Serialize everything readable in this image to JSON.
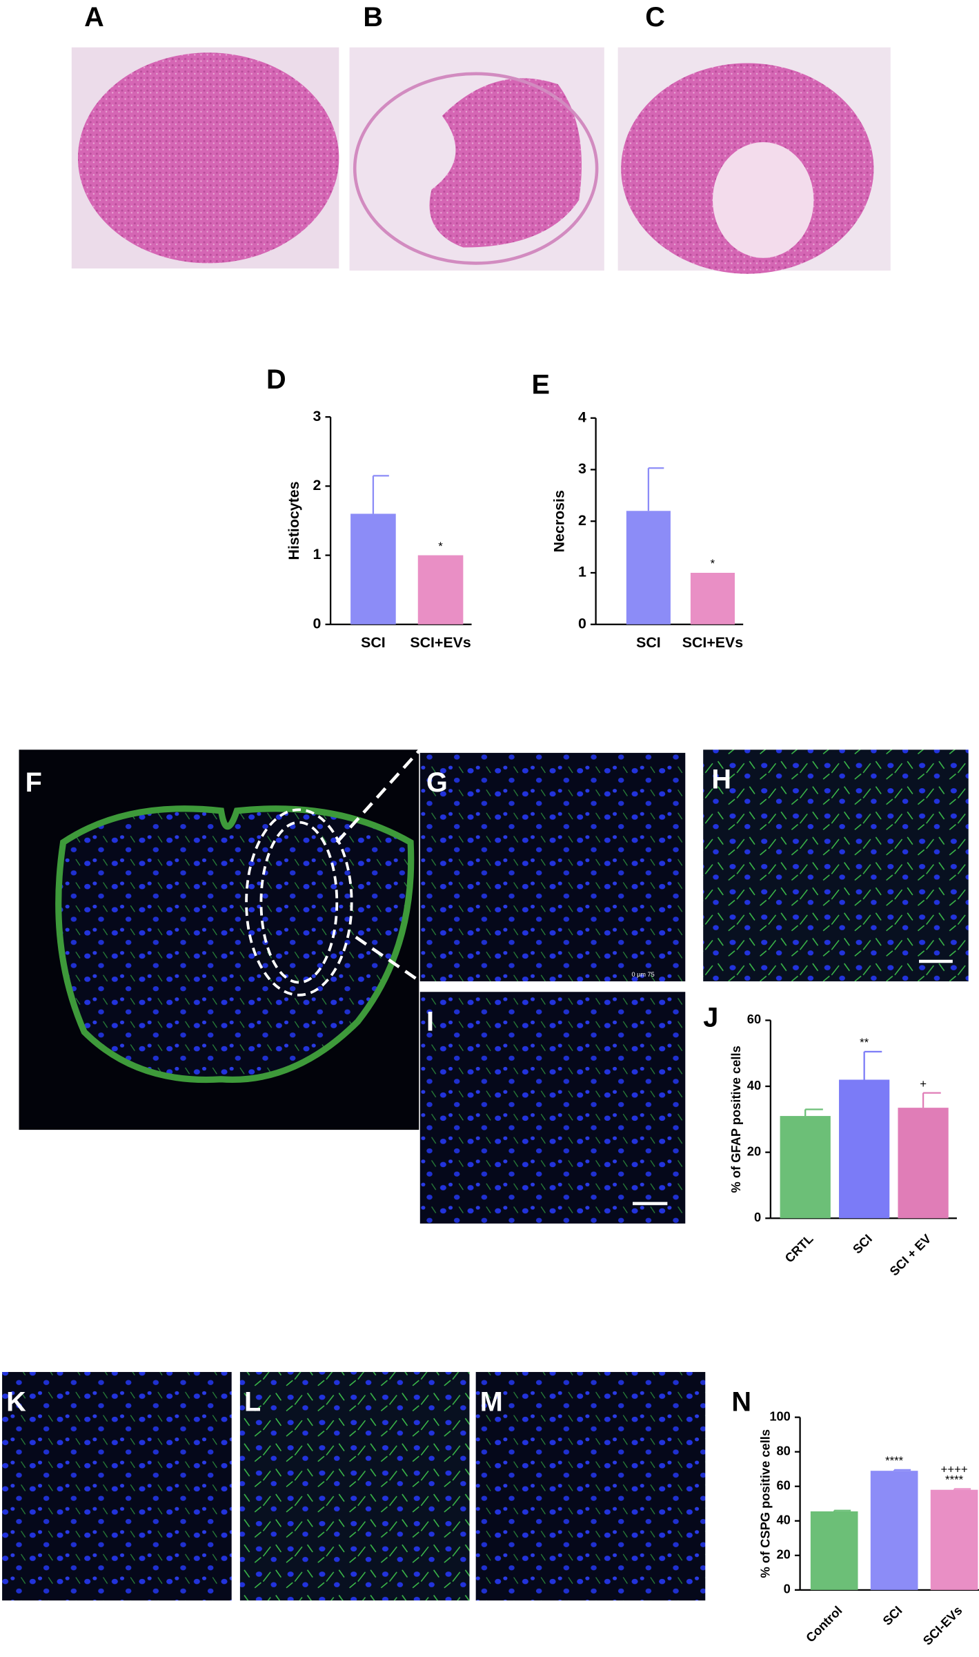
{
  "panels": {
    "A": "A",
    "B": "B",
    "C": "C",
    "F": "F",
    "G": "G",
    "H": "H",
    "I": "I",
    "K": "K",
    "L": "L",
    "M": "M",
    "G_scale": "0    μm    75"
  },
  "chart_data": [
    {
      "type": "bar",
      "panel": "D",
      "ylabel": "Histiocytes",
      "categories": [
        "SCI",
        "SCI+EVs"
      ],
      "values": [
        1.6,
        1.0
      ],
      "errors": [
        0.55,
        null
      ],
      "colors": [
        "#8c8cf7",
        "#e98fc5"
      ],
      "significance": [
        null,
        [
          "*"
        ]
      ],
      "ylim": [
        0,
        3
      ],
      "yticks": [
        0,
        1,
        2,
        3
      ]
    },
    {
      "type": "bar",
      "panel": "E",
      "ylabel": "Necrosis",
      "categories": [
        "SCI",
        "SCI+EVs"
      ],
      "values": [
        2.2,
        1.0
      ],
      "errors": [
        0.83,
        null
      ],
      "colors": [
        "#8c8cf7",
        "#e98fc5"
      ],
      "significance": [
        null,
        [
          "*"
        ]
      ],
      "ylim": [
        0,
        4
      ],
      "yticks": [
        0,
        1,
        2,
        3,
        4
      ]
    },
    {
      "type": "bar",
      "panel": "J",
      "ylabel": "% of GFAP positive cells",
      "categories": [
        "CRTL",
        "SCI",
        "SCI + EV"
      ],
      "values": [
        31,
        42,
        33.5
      ],
      "errors": [
        2,
        8.5,
        4.5
      ],
      "colors": [
        "#6cbf77",
        "#7b7bf7",
        "#e07db7"
      ],
      "significance": [
        null,
        [
          "**"
        ],
        [
          "+"
        ]
      ],
      "ylim": [
        0,
        60
      ],
      "yticks": [
        0,
        20,
        40,
        60
      ]
    },
    {
      "type": "bar",
      "panel": "N",
      "ylabel": "% of CSPG positive cells",
      "categories": [
        "Control",
        "SCI",
        "SCI-EVs"
      ],
      "values": [
        45.5,
        69,
        58
      ],
      "errors": [
        0.5,
        0.5,
        0.5
      ],
      "colors": [
        "#6cbf77",
        "#8c8cf7",
        "#e98fc5"
      ],
      "significance": [
        null,
        [
          "****"
        ],
        [
          "++++",
          "****"
        ]
      ],
      "ylim": [
        0,
        100
      ],
      "yticks": [
        0,
        20,
        40,
        60,
        80,
        100
      ]
    }
  ]
}
